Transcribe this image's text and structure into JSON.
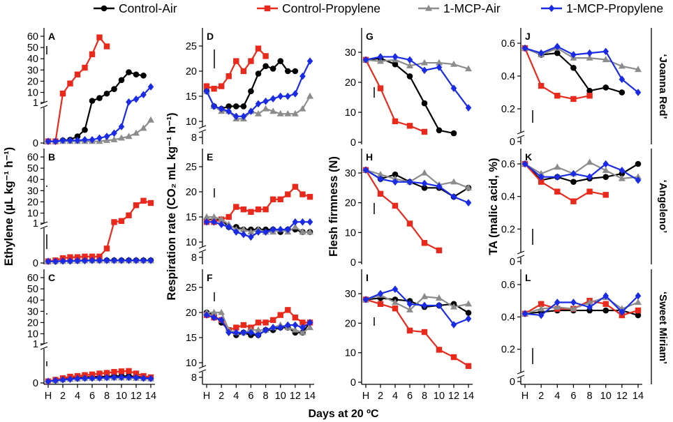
{
  "figure": {
    "x_axis_title": "Days at 20 ºC",
    "x_tick_labels": [
      "H",
      "2",
      "4",
      "6",
      "8",
      "10",
      "12",
      "14"
    ],
    "column_titles": {
      "ethylene": "Ethylene (µL kg⁻¹ h⁻¹)",
      "respiration": "Respiration rate (CO₂ mL kg⁻¹ h⁻¹)",
      "firmness": "Flesh firmness (N)",
      "ta": "TA (malic acid, %)"
    },
    "cultivars": [
      "‘Joanna Red’",
      "‘Angeleno’",
      "‘Sweet Miriam’"
    ]
  },
  "legend": [
    {
      "name": "Control-Air",
      "color": "#000000",
      "marker": "circle"
    },
    {
      "name": "Control-Propylene",
      "color": "#e8291c",
      "marker": "square"
    },
    {
      "name": "1-MCP-Air",
      "color": "#8c8c8c",
      "marker": "triangle"
    },
    {
      "name": "1-MCP-Propylene",
      "color": "#1a2be6",
      "marker": "diamond"
    }
  ],
  "chart_data": [
    {
      "panel": "A",
      "type": "line",
      "column": "ethylene",
      "cultivar": "Joanna Red",
      "ylim": [
        0,
        60
      ],
      "yticks": [
        "0",
        "1",
        "10",
        "20",
        "30",
        "40",
        "50",
        "60"
      ],
      "x": [
        0,
        1,
        2,
        3,
        4,
        5,
        6,
        7,
        8,
        9,
        10,
        11,
        12,
        13,
        14
      ],
      "series": [
        {
          "name": "Control-Air",
          "values": [
            0.05,
            0.05,
            0.08,
            0.1,
            0.2,
            0.4,
            2.5,
            5,
            9,
            13,
            21,
            28,
            26,
            25,
            null
          ]
        },
        {
          "name": "Control-Propylene",
          "values": [
            0.05,
            0.05,
            9,
            18,
            26,
            32,
            44,
            59,
            51,
            null,
            null,
            null,
            null,
            null,
            null
          ]
        },
        {
          "name": "1-MCP-Air",
          "values": [
            0.05,
            0.05,
            0.05,
            0.05,
            0.05,
            0.05,
            0.05,
            0.05,
            0.08,
            0.1,
            0.15,
            0.2,
            0.3,
            0.45,
            0.7
          ]
        },
        {
          "name": "1-MCP-Propylene",
          "values": [
            0.05,
            0.05,
            0.08,
            0.08,
            0.08,
            0.1,
            0.1,
            0.15,
            0.2,
            0.3,
            0.5,
            1.5,
            4,
            8,
            15
          ]
        }
      ]
    },
    {
      "panel": "B",
      "type": "line",
      "column": "ethylene",
      "cultivar": "Angeleno",
      "ylim": [
        0,
        60
      ],
      "yticks": [
        "0",
        "1",
        "10",
        "20",
        "30",
        "40",
        "50",
        "60"
      ],
      "x": [
        0,
        1,
        2,
        3,
        4,
        5,
        6,
        7,
        8,
        9,
        10,
        11,
        12,
        13,
        14
      ],
      "series": [
        {
          "name": "Control-Air",
          "values": [
            0.05,
            0.05,
            0.06,
            0.06,
            0.07,
            0.08,
            0.08,
            0.08,
            0.08,
            0.08,
            0.08,
            0.08,
            0.08,
            0.08,
            0.08
          ]
        },
        {
          "name": "Control-Propylene",
          "values": [
            0.05,
            0.08,
            0.15,
            0.18,
            0.18,
            0.2,
            0.2,
            0.2,
            0.45,
            2,
            3,
            8,
            17,
            21,
            19
          ]
        },
        {
          "name": "1-MCP-Air",
          "values": [
            0.05,
            0.05,
            0.05,
            0.06,
            0.06,
            0.07,
            0.07,
            0.07,
            0.07,
            0.07,
            0.07,
            0.07,
            0.07,
            0.07,
            0.07
          ]
        },
        {
          "name": "1-MCP-Propylene",
          "values": [
            0.05,
            0.05,
            0.06,
            0.06,
            0.07,
            0.07,
            0.08,
            0.08,
            0.08,
            0.08,
            0.08,
            0.08,
            0.08,
            0.08,
            0.08
          ]
        }
      ]
    },
    {
      "panel": "C",
      "type": "line",
      "column": "ethylene",
      "cultivar": "Sweet Miriam",
      "ylim": [
        0,
        60
      ],
      "yticks": [
        "0",
        "1",
        "10",
        "20",
        "30",
        "40",
        "50",
        "60"
      ],
      "x": [
        0,
        1,
        2,
        3,
        4,
        5,
        6,
        7,
        8,
        9,
        10,
        11,
        12,
        13,
        14
      ],
      "series": [
        {
          "name": "Control-Air",
          "values": [
            0.05,
            0.08,
            0.12,
            0.15,
            0.17,
            0.18,
            0.2,
            0.2,
            0.2,
            0.22,
            0.22,
            0.22,
            0.2,
            0.18,
            0.15
          ]
        },
        {
          "name": "Control-Propylene",
          "values": [
            0.05,
            0.1,
            0.15,
            0.2,
            0.22,
            0.25,
            0.27,
            0.3,
            0.32,
            0.35,
            0.37,
            0.38,
            0.3,
            0.22,
            0.18
          ]
        },
        {
          "name": "1-MCP-Air",
          "values": [
            0.05,
            0.07,
            0.1,
            0.12,
            0.13,
            0.14,
            0.15,
            0.15,
            0.16,
            0.16,
            0.16,
            0.16,
            0.15,
            0.14,
            0.13
          ]
        },
        {
          "name": "1-MCP-Propylene",
          "values": [
            0.05,
            0.08,
            0.1,
            0.12,
            0.14,
            0.15,
            0.15,
            0.16,
            0.17,
            0.18,
            0.18,
            0.18,
            0.17,
            0.15,
            0.14
          ]
        }
      ]
    },
    {
      "panel": "D",
      "type": "line",
      "column": "respiration",
      "cultivar": "Joanna Red",
      "ylim": [
        8,
        25
      ],
      "yticks": [
        "8",
        "10",
        "15",
        "20",
        "25"
      ],
      "x": [
        0,
        1,
        2,
        3,
        4,
        5,
        6,
        7,
        8,
        9,
        10,
        11,
        12,
        13,
        14
      ],
      "series": [
        {
          "name": "Control-Air",
          "values": [
            16,
            13,
            12.5,
            13,
            13,
            13,
            16,
            19.5,
            21,
            20.5,
            22,
            20,
            20,
            null,
            null
          ]
        },
        {
          "name": "Control-Propylene",
          "values": [
            17,
            16.5,
            17,
            19,
            22,
            20,
            22,
            24.5,
            23,
            null,
            null,
            null,
            null,
            null,
            null
          ]
        },
        {
          "name": "1-MCP-Air",
          "values": [
            16,
            13,
            12,
            12,
            10.5,
            10.5,
            12,
            11.5,
            12.5,
            12,
            11.5,
            11.5,
            11.5,
            12.5,
            15
          ]
        },
        {
          "name": "1-MCP-Propylene",
          "values": [
            16,
            13,
            12.5,
            12,
            11,
            11,
            12,
            13.5,
            14,
            14.5,
            15,
            15,
            15.5,
            19,
            22
          ]
        }
      ]
    },
    {
      "panel": "E",
      "type": "line",
      "column": "respiration",
      "cultivar": "Angeleno",
      "ylim": [
        8,
        25
      ],
      "yticks": [
        "8",
        "10",
        "15",
        "20",
        "25"
      ],
      "x": [
        0,
        1,
        2,
        3,
        4,
        5,
        6,
        7,
        8,
        9,
        10,
        11,
        12,
        13,
        14
      ],
      "series": [
        {
          "name": "Control-Air",
          "values": [
            14.5,
            14.5,
            14.5,
            13,
            13,
            12.5,
            12.5,
            12.5,
            12.5,
            12.5,
            12,
            12.5,
            12.5,
            12,
            12
          ]
        },
        {
          "name": "Control-Propylene",
          "values": [
            14,
            14,
            14.5,
            15,
            17,
            16.5,
            16,
            16.5,
            16.5,
            18.5,
            18.5,
            19.5,
            21,
            19.5,
            19
          ]
        },
        {
          "name": "1-MCP-Air",
          "values": [
            15,
            15,
            14.5,
            13.5,
            12.5,
            12.5,
            12,
            12.5,
            12,
            12,
            12.5,
            12,
            13,
            12,
            12
          ]
        },
        {
          "name": "1-MCP-Propylene",
          "values": [
            14,
            14,
            13.5,
            13,
            12,
            11.5,
            11,
            12,
            12,
            12.5,
            12.5,
            12.5,
            14,
            14,
            14
          ]
        }
      ]
    },
    {
      "panel": "F",
      "type": "line",
      "column": "respiration",
      "cultivar": "Sweet Miriam",
      "ylim": [
        8,
        25
      ],
      "yticks": [
        "8",
        "10",
        "15",
        "20",
        "25"
      ],
      "x": [
        0,
        1,
        2,
        3,
        4,
        5,
        6,
        7,
        8,
        9,
        10,
        11,
        12,
        13,
        14
      ],
      "series": [
        {
          "name": "Control-Air",
          "values": [
            20,
            19.5,
            18,
            16.5,
            15.5,
            16,
            15.5,
            15.5,
            16.5,
            16.5,
            17,
            17,
            16,
            16,
            18
          ]
        },
        {
          "name": "Control-Propylene",
          "values": [
            19.5,
            19,
            18.5,
            16.5,
            17,
            17.5,
            17,
            18,
            18,
            18.5,
            19.5,
            20.5,
            19,
            18,
            18
          ]
        },
        {
          "name": "1-MCP-Air",
          "values": [
            20,
            20,
            20,
            16.5,
            16,
            16,
            16.5,
            16.5,
            16.5,
            17,
            17.5,
            17,
            16.5,
            16,
            17
          ]
        },
        {
          "name": "1-MCP-Propylene",
          "values": [
            19.5,
            19,
            18.5,
            16,
            16,
            16,
            16,
            15.5,
            16.5,
            17,
            17,
            17.5,
            17.5,
            17,
            18
          ]
        }
      ]
    },
    {
      "panel": "G",
      "type": "line",
      "column": "firmness",
      "cultivar": "Joanna Red",
      "ylim": [
        0,
        35
      ],
      "yticks": [
        "0",
        "10",
        "20",
        "30"
      ],
      "x": [
        0,
        2,
        4,
        6,
        8,
        10,
        12,
        14
      ],
      "series": [
        {
          "name": "Control-Air",
          "values": [
            27.5,
            28,
            26,
            22,
            13,
            4,
            3,
            null
          ]
        },
        {
          "name": "Control-Propylene",
          "values": [
            27.5,
            18,
            7,
            5.5,
            3.5,
            null,
            null,
            null
          ]
        },
        {
          "name": "1-MCP-Air",
          "values": [
            27.5,
            27,
            27.5,
            25.5,
            26.5,
            26.5,
            26,
            24.5
          ]
        },
        {
          "name": "1-MCP-Propylene",
          "values": [
            27.5,
            28.5,
            28.5,
            27.5,
            24,
            25,
            18,
            11.5
          ]
        }
      ]
    },
    {
      "panel": "H",
      "type": "line",
      "column": "firmness",
      "cultivar": "Angeleno",
      "ylim": [
        0,
        35
      ],
      "yticks": [
        "0",
        "10",
        "20",
        "30"
      ],
      "x": [
        0,
        2,
        4,
        6,
        8,
        10,
        12,
        14
      ],
      "series": [
        {
          "name": "Control-Air",
          "values": [
            31,
            28,
            29.5,
            27,
            25,
            25,
            22,
            25
          ]
        },
        {
          "name": "Control-Propylene",
          "values": [
            31,
            23,
            19,
            13,
            6.5,
            4,
            null,
            null
          ]
        },
        {
          "name": "1-MCP-Air",
          "values": [
            31,
            29.5,
            28,
            27,
            30,
            26,
            27,
            25
          ]
        },
        {
          "name": "1-MCP-Propylene",
          "values": [
            31,
            28,
            27,
            27,
            26.5,
            25.5,
            22,
            20
          ]
        }
      ]
    },
    {
      "panel": "I",
      "type": "line",
      "column": "firmness",
      "cultivar": "Sweet Miriam",
      "ylim": [
        0,
        35
      ],
      "yticks": [
        "0",
        "10",
        "20",
        "30"
      ],
      "x": [
        0,
        2,
        4,
        6,
        8,
        10,
        12,
        14
      ],
      "series": [
        {
          "name": "Control-Air",
          "values": [
            28,
            28.5,
            28,
            27.5,
            25.5,
            26,
            26.5,
            23.5
          ]
        },
        {
          "name": "Control-Propylene",
          "values": [
            28,
            26.5,
            25,
            17.5,
            17,
            11,
            8.5,
            5.5
          ]
        },
        {
          "name": "1-MCP-Air",
          "values": [
            28,
            29.5,
            27,
            24.5,
            29,
            28.5,
            25.5,
            26.5
          ]
        },
        {
          "name": "1-MCP-Propylene",
          "values": [
            28,
            30,
            31.5,
            26.5,
            26,
            26,
            19.5,
            21.5
          ]
        }
      ]
    },
    {
      "panel": "J",
      "type": "line",
      "column": "ta",
      "cultivar": "Joanna Red",
      "ylim": [
        0,
        0.65
      ],
      "yticks": [
        "0",
        "0.2",
        "0.4",
        "0.6"
      ],
      "x": [
        0,
        2,
        4,
        6,
        8,
        10,
        12,
        14
      ],
      "series": [
        {
          "name": "Control-Air",
          "values": [
            0.57,
            0.53,
            0.54,
            0.45,
            0.31,
            0.33,
            0.3,
            null
          ]
        },
        {
          "name": "Control-Propylene",
          "values": [
            0.57,
            0.34,
            0.28,
            0.26,
            0.28,
            null,
            null,
            null
          ]
        },
        {
          "name": "1-MCP-Air",
          "values": [
            0.57,
            0.53,
            0.57,
            0.51,
            0.51,
            0.5,
            0.46,
            0.44
          ]
        },
        {
          "name": "1-MCP-Propylene",
          "values": [
            0.57,
            0.54,
            0.58,
            0.53,
            0.54,
            0.55,
            0.38,
            0.3
          ]
        }
      ]
    },
    {
      "panel": "K",
      "type": "line",
      "column": "ta",
      "cultivar": "Angeleno",
      "ylim": [
        0,
        0.65
      ],
      "yticks": [
        "0",
        "0.2",
        "0.4",
        "0.6"
      ],
      "x": [
        0,
        2,
        4,
        6,
        8,
        10,
        12,
        14
      ],
      "series": [
        {
          "name": "Control-Air",
          "values": [
            0.6,
            0.5,
            0.52,
            0.49,
            0.51,
            0.52,
            0.54,
            0.6
          ]
        },
        {
          "name": "Control-Propylene",
          "values": [
            0.6,
            0.49,
            0.43,
            0.37,
            0.43,
            0.41,
            null,
            null
          ]
        },
        {
          "name": "1-MCP-Air",
          "values": [
            0.6,
            0.54,
            0.58,
            0.54,
            0.61,
            0.56,
            0.51,
            0.52
          ]
        },
        {
          "name": "1-MCP-Propylene",
          "values": [
            0.6,
            0.52,
            0.52,
            0.54,
            0.52,
            0.6,
            0.56,
            0.5
          ]
        }
      ]
    },
    {
      "panel": "L",
      "type": "line",
      "column": "ta",
      "cultivar": "Sweet Miriam",
      "ylim": [
        0,
        0.65
      ],
      "yticks": [
        "0",
        "0.2",
        "0.4",
        "0.6"
      ],
      "x": [
        0,
        2,
        4,
        6,
        8,
        10,
        12,
        14
      ],
      "series": [
        {
          "name": "Control-Air",
          "values": [
            0.42,
            0.43,
            0.44,
            0.44,
            0.44,
            0.44,
            0.44,
            0.41
          ]
        },
        {
          "name": "Control-Propylene",
          "values": [
            0.42,
            0.48,
            0.45,
            0.45,
            0.5,
            0.48,
            0.41,
            0.44
          ]
        },
        {
          "name": "1-MCP-Air",
          "values": [
            0.42,
            0.45,
            0.46,
            0.45,
            0.49,
            0.52,
            0.45,
            0.49
          ]
        },
        {
          "name": "1-MCP-Propylene",
          "values": [
            0.42,
            0.41,
            0.49,
            0.49,
            0.46,
            0.53,
            0.43,
            0.53
          ]
        }
      ]
    }
  ]
}
